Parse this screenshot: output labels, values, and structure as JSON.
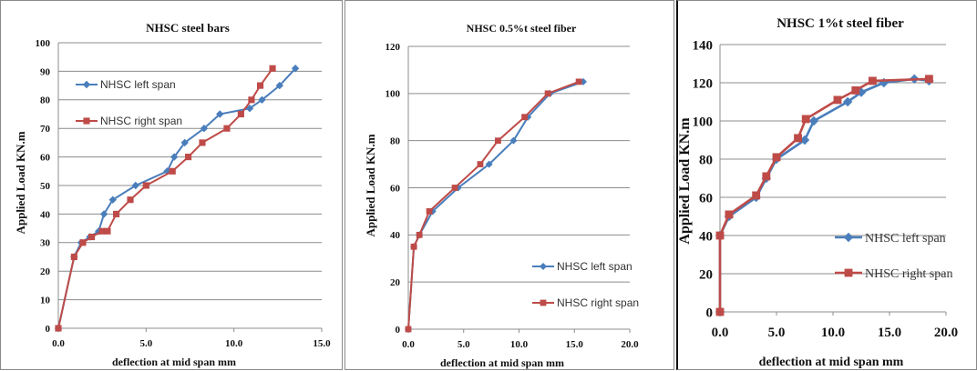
{
  "chart_data": [
    {
      "type": "line",
      "title": "NHSC  steel bars",
      "xlabel": "deflection at mid span mm",
      "ylabel": "Applied  Load KN.m",
      "xlim": [
        0,
        15
      ],
      "ylim": [
        0,
        100
      ],
      "x_ticks": [
        "0.0",
        "5.0",
        "10.0",
        "15.0"
      ],
      "y_ticks": [
        "0",
        "10",
        "20",
        "30",
        "40",
        "50",
        "60",
        "70",
        "80",
        "90",
        "100"
      ],
      "grid": true,
      "legend_position": "top-left",
      "series": [
        {
          "name": "NHSC left span",
          "color": "#4a7ebb",
          "marker": "diamond",
          "points": [
            [
              0,
              0
            ],
            [
              0.9,
              25
            ],
            [
              1.3,
              30
            ],
            [
              1.8,
              32
            ],
            [
              2.3,
              34
            ],
            [
              2.6,
              40
            ],
            [
              3.1,
              45
            ],
            [
              4.4,
              50
            ],
            [
              6.2,
              55
            ],
            [
              6.6,
              60
            ],
            [
              7.2,
              65
            ],
            [
              8.3,
              70
            ],
            [
              9.2,
              75
            ],
            [
              10.9,
              77
            ],
            [
              11.6,
              80
            ],
            [
              12.6,
              85
            ],
            [
              13.5,
              91
            ]
          ]
        },
        {
          "name": "NHSC right span",
          "color": "#be4b48",
          "marker": "square",
          "points": [
            [
              0,
              0
            ],
            [
              0.9,
              25
            ],
            [
              1.4,
              30
            ],
            [
              1.9,
              32
            ],
            [
              2.5,
              34
            ],
            [
              2.8,
              34
            ],
            [
              3.3,
              40
            ],
            [
              4.1,
              45
            ],
            [
              5,
              50
            ],
            [
              6.5,
              55
            ],
            [
              7.4,
              60
            ],
            [
              8.2,
              65
            ],
            [
              9.6,
              70
            ],
            [
              10.4,
              75
            ],
            [
              11,
              80
            ],
            [
              11.5,
              85
            ],
            [
              12.2,
              91
            ]
          ]
        }
      ]
    },
    {
      "type": "line",
      "title": "NHSC 0.5%t steel fiber",
      "xlabel": "deflection at mid span mm",
      "ylabel": "Applied  Load KN.m",
      "xlim": [
        0,
        20
      ],
      "ylim": [
        0,
        120
      ],
      "x_ticks": [
        "0.0",
        "5.0",
        "10.0",
        "15.0",
        "20.0"
      ],
      "y_ticks": [
        "0",
        "20",
        "40",
        "60",
        "80",
        "100",
        "120"
      ],
      "grid": true,
      "legend_position": "bottom-right",
      "series": [
        {
          "name": "NHSC left span",
          "color": "#4a7ebb",
          "marker": "diamond",
          "points": [
            [
              0,
              0
            ],
            [
              0.5,
              35
            ],
            [
              1,
              40
            ],
            [
              2.2,
              50
            ],
            [
              4.5,
              60
            ],
            [
              7.3,
              70
            ],
            [
              9.5,
              80
            ],
            [
              10.8,
              90
            ],
            [
              12.8,
              100
            ],
            [
              15.8,
              105
            ]
          ]
        },
        {
          "name": "NHSC right span",
          "color": "#be4b48",
          "marker": "square",
          "points": [
            [
              0,
              0
            ],
            [
              0.5,
              35
            ],
            [
              1,
              40
            ],
            [
              1.9,
              50
            ],
            [
              4.2,
              60
            ],
            [
              6.5,
              70
            ],
            [
              8.1,
              80
            ],
            [
              10.5,
              90
            ],
            [
              12.6,
              100
            ],
            [
              15.4,
              105
            ]
          ]
        }
      ]
    },
    {
      "type": "line",
      "title": "NHSC 1%t steel fiber",
      "xlabel": "deflection at mid span mm",
      "ylabel": "Applied  Load KN.m",
      "xlim": [
        0,
        20
      ],
      "ylim": [
        0,
        140
      ],
      "x_ticks": [
        "0.0",
        "5.0",
        "10.0",
        "15.0",
        "20.0"
      ],
      "y_ticks": [
        "0",
        "20",
        "40",
        "60",
        "80",
        "100",
        "120",
        "140"
      ],
      "grid": true,
      "legend_position": "bottom-right",
      "series": [
        {
          "name": "NHSC left span",
          "color": "#4a7ebb",
          "marker": "diamond",
          "points": [
            [
              0,
              0
            ],
            [
              0,
              40
            ],
            [
              0.8,
              50
            ],
            [
              3.2,
              60
            ],
            [
              4.1,
              70
            ],
            [
              5,
              80
            ],
            [
              7.5,
              90
            ],
            [
              8.3,
              100
            ],
            [
              11.3,
              110
            ],
            [
              12.5,
              115
            ],
            [
              14.5,
              120
            ],
            [
              17.2,
              122
            ],
            [
              18.5,
              121
            ]
          ]
        },
        {
          "name": "NHSC right span",
          "color": "#be4b48",
          "marker": "square",
          "points": [
            [
              0,
              0
            ],
            [
              0,
              40
            ],
            [
              0.8,
              51
            ],
            [
              3.2,
              61
            ],
            [
              4.1,
              71
            ],
            [
              5,
              81
            ],
            [
              6.9,
              91
            ],
            [
              7.6,
              101
            ],
            [
              10.4,
              111
            ],
            [
              12,
              116
            ],
            [
              13.5,
              121
            ],
            [
              18.5,
              122
            ]
          ]
        }
      ]
    }
  ]
}
